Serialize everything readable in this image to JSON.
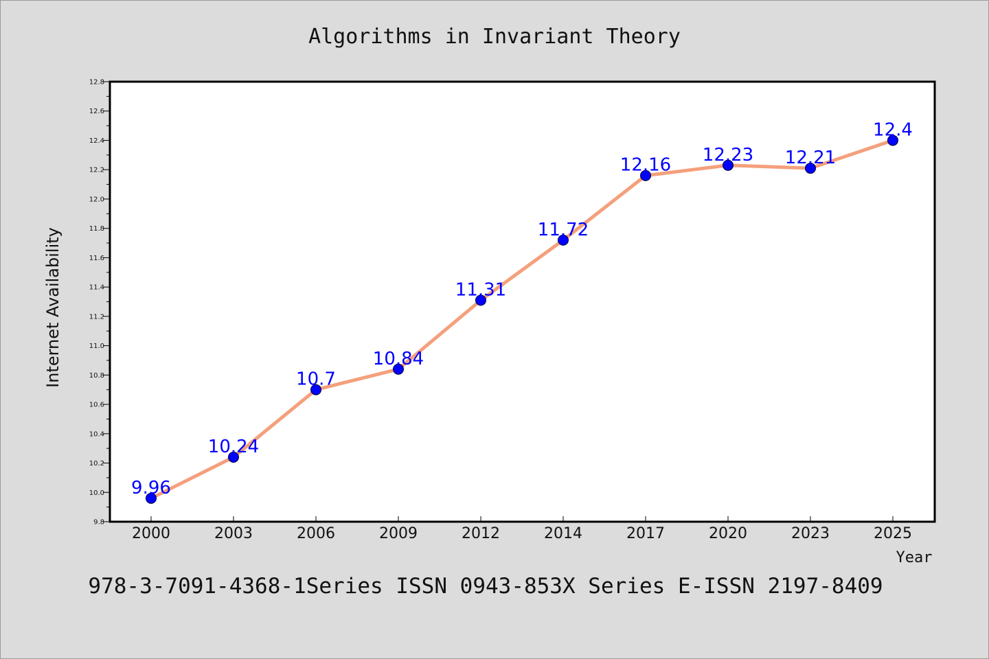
{
  "chart_data": {
    "type": "line",
    "title": "Algorithms in Invariant Theory",
    "xlabel": "Year",
    "ylabel": "Internet Availability",
    "categories": [
      "2000",
      "2003",
      "2006",
      "2009",
      "2012",
      "2014",
      "2017",
      "2020",
      "2023",
      "2025"
    ],
    "series": [
      {
        "values": [
          9.96,
          10.24,
          10.7,
          10.84,
          11.31,
          11.72,
          12.16,
          12.23,
          12.21,
          12.4
        ]
      }
    ],
    "data_labels": [
      "9.96",
      "10.24",
      "10.7",
      "10.84",
      "11.31",
      "11.72",
      "12.16",
      "12.23",
      "12.21",
      "12.4"
    ],
    "ylim": [
      9.8,
      12.8
    ],
    "yticks": [
      "9.8",
      "10.0",
      "10.2",
      "10.4",
      "10.6",
      "10.8",
      "11.0",
      "11.2",
      "11.4",
      "11.6",
      "11.8",
      "12.0",
      "12.2",
      "12.4",
      "12.6",
      "12.8"
    ],
    "grid": false,
    "legend": "none",
    "line_color": "#f4a07c",
    "marker_color": "#0000ff",
    "label_color": "#0000ff"
  },
  "caption": "978-3-7091-4368-1Series ISSN 0943-853X Series E-ISSN 2197-8409"
}
